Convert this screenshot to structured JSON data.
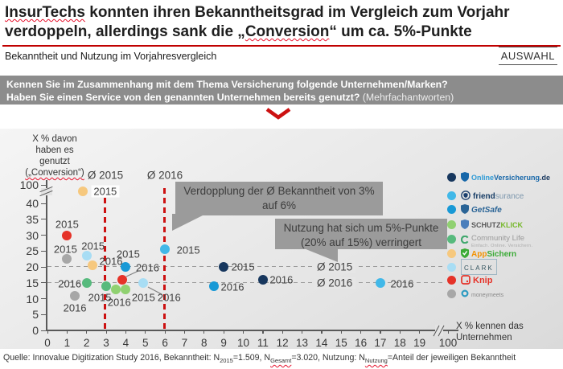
{
  "header": {
    "title_lines": [
      [
        {
          "text": "InsurTechs",
          "squiggle": true
        },
        {
          "text": " konnten ihren Bekanntheitsgrad im Vergleich zum Vorjahr",
          "squiggle": false
        }
      ],
      [
        {
          "text": "verdoppeln, allerdings sank die „",
          "squiggle": false
        },
        {
          "text": "Conversion",
          "squiggle": true
        },
        {
          "text": "“ um ca. 5%-Punkte",
          "squiggle": false
        }
      ]
    ],
    "subtitle": "Bekanntheit und Nutzung im Vorjahresvergleich",
    "auswahl_label": "AUSWAHL"
  },
  "question_box": {
    "line1": "Kennen Sie im Zusammenhang mit dem Thema Versicherung folgende Unternehmen/Marken?",
    "line2": "Haben Sie einen Service von den genannten Unternehmen bereits genutzt?",
    "line2_note": " (Mehrfachantworten)"
  },
  "chart_data": {
    "type": "scatter",
    "xlabel_lines": [
      "X % kennen das",
      "Unternehmen"
    ],
    "ylabel_lines": [
      "X % davon",
      "haben es",
      "genutzt"
    ],
    "ylabel_last_line": "(„Conversion“)",
    "x_ticks": [
      0,
      1,
      2,
      3,
      4,
      5,
      6,
      7,
      8,
      9,
      10,
      11,
      12,
      13,
      14,
      15,
      16,
      17,
      18,
      19
    ],
    "x_high_tick": 100,
    "y_ticks": [
      0,
      5,
      10,
      15,
      20,
      25,
      30,
      35,
      40
    ],
    "y_high_tick": 100,
    "axis_breaks": true,
    "avg_awareness": {
      "label_2015": "Ø 2015",
      "label_2016": "Ø 2016",
      "value_2015": 3,
      "value_2016": 6
    },
    "avg_usage": {
      "label_2015": "Ø 2015",
      "label_2016": "Ø 2016",
      "value_2015": 20,
      "value_2016": 15
    },
    "annotations": [
      "Verdopplung der Ø Bekanntheit von 3% auf 6%",
      "Nutzung hat sich um 5%-Punkte (20% auf 15%) verringert"
    ],
    "series": [
      {
        "name": "OnlineVersicherung.de",
        "color": "#17375e",
        "points": [
          {
            "year": "2015",
            "x": 9,
            "y": 20
          },
          {
            "year": "2016",
            "x": 11,
            "y": 16
          }
        ]
      },
      {
        "name": "friendsurance",
        "color": "#41b8e8",
        "points": [
          {
            "year": "2015",
            "x": 6,
            "y": 25.5
          },
          {
            "year": "2016",
            "x": 17,
            "y": 15
          }
        ]
      },
      {
        "name": "GetSafe",
        "color": "#1899d6",
        "points": [
          {
            "year": "2015",
            "x": 4,
            "y": 20
          },
          {
            "year": "2016",
            "x": 8.5,
            "y": 14
          }
        ]
      },
      {
        "name": "SCHUTZKLICK",
        "color": "#90d171",
        "points": [
          {
            "year": "2015",
            "x": 4,
            "y": 13
          },
          {
            "year": "2016",
            "x": 3.5,
            "y": 13
          }
        ]
      },
      {
        "name": "Community Life",
        "color": "#57ba7d",
        "points": [
          {
            "year": "2015",
            "x": 3,
            "y": 14
          },
          {
            "year": "2016",
            "x": 2,
            "y": 15
          }
        ]
      },
      {
        "name": "AppSichern",
        "color": "#f6c87e",
        "points": [
          {
            "year": "2015",
            "x": 1.8,
            "y": 48,
            "above_break": true
          },
          {
            "year": "2016",
            "x": 2.3,
            "y": 20.5
          }
        ]
      },
      {
        "name": "CLARK",
        "color": "#a8ddf4",
        "points": [
          {
            "year": "2015",
            "x": 2,
            "y": 23.5
          },
          {
            "year": "2016",
            "x": 4.9,
            "y": 15
          }
        ]
      },
      {
        "name": "Knip",
        "color": "#e53228",
        "points": [
          {
            "year": "2015",
            "x": 1,
            "y": 30
          },
          {
            "year": "2016",
            "x": 3.8,
            "y": 16
          }
        ]
      },
      {
        "name": "moneymeets",
        "color": "#a7a7a7",
        "points": [
          {
            "year": "2015",
            "x": 1,
            "y": 22.5
          },
          {
            "year": "2016",
            "x": 1.4,
            "y": 11
          }
        ]
      }
    ]
  },
  "legend": [
    {
      "name": "OnlineVersicherung.de",
      "dot_color": "#17375e",
      "icon": "shield-icon",
      "icon_color": "#1767a9",
      "parts": [
        {
          "text": "Online",
          "color": "#2e9bd6",
          "bold": true
        },
        {
          "text": "Versicherung",
          "color": "#1767a9",
          "bold": true
        },
        {
          "text": ".de",
          "color": "#17375e",
          "bold": true
        }
      ],
      "size": 9
    },
    {
      "name": "friendsurance",
      "dot_color": "#41b8e8",
      "icon": "circle-shield-icon",
      "icon_color": "#1b3f6e",
      "parts": [
        {
          "text": "friend",
          "color": "#173d66",
          "bold": true
        },
        {
          "text": "surance",
          "color": "#7d97ad",
          "bold": false
        }
      ],
      "size": 10
    },
    {
      "name": "GetSafe",
      "dot_color": "#1899d6",
      "icon": "shield-icon",
      "icon_color": "#2a6496",
      "parts": [
        {
          "text": "GetSafe",
          "color": "#2a6496",
          "bold": true,
          "italic": true
        }
      ],
      "size": 10
    },
    {
      "name": "SCHUTZKLICK",
      "dot_color": "#90d171",
      "icon": "shield-icon",
      "icon_color": "#4a7ebb",
      "parts": [
        {
          "text": "SCHUTZ",
          "color": "#595959",
          "bold": true
        },
        {
          "text": "KLICK",
          "color": "#76b82a",
          "bold": true
        }
      ],
      "size": 9
    },
    {
      "name": "Community Life",
      "dot_color": "#57ba7d",
      "icon": "c-mark-icon",
      "icon_color": "#3fa76c",
      "parts": [
        {
          "text": "Community Life",
          "color": "#9a9a9a",
          "bold": false
        }
      ],
      "tagline": "Einfach. Online. Versichern.",
      "size": 9.5
    },
    {
      "name": "AppSichern",
      "dot_color": "#f6c87e",
      "icon": "shield-check-icon",
      "icon_color": "#3aaa35",
      "parts": [
        {
          "text": "App",
          "color": "#f39200",
          "bold": true
        },
        {
          "text": "Sichern",
          "color": "#3aaa35",
          "bold": true
        }
      ],
      "size": 10
    },
    {
      "name": "CLARK",
      "dot_color": "#a8ddf4",
      "icon": "bracket-icon",
      "icon_color": "#9fb6c3",
      "parts": [
        {
          "text": "CLARK",
          "color": "#33535e",
          "bold": false
        }
      ],
      "framed": true,
      "size": 8
    },
    {
      "name": "Knip",
      "dot_color": "#e53228",
      "icon": "rounded-square-icon",
      "icon_color": "#e53228",
      "parts": [
        {
          "text": "Knip",
          "color": "#e53228",
          "bold": true
        }
      ],
      "size": 11
    },
    {
      "name": "moneymeets",
      "dot_color": "#a7a7a7",
      "icon": "ring-icon",
      "icon_color": "#2d9bc1",
      "parts": [
        {
          "text": "moneymeets",
          "color": "#8a8a8a",
          "bold": false
        }
      ],
      "size": 7
    }
  ],
  "source_segments": [
    {
      "text": "Quelle: Innovalue Digitization Study 2016, Bekanntheit: N"
    },
    {
      "text": "2015",
      "sub": true
    },
    {
      "text": "=1.509, N"
    },
    {
      "text": "Gesamt",
      "sub": true,
      "squiggle": true
    },
    {
      "text": "=3.020, Nutzung: N"
    },
    {
      "text": "Nutzung",
      "sub": true,
      "squiggle": true
    },
    {
      "text": "=Anteil der jeweiligen Bekanntheit"
    }
  ]
}
